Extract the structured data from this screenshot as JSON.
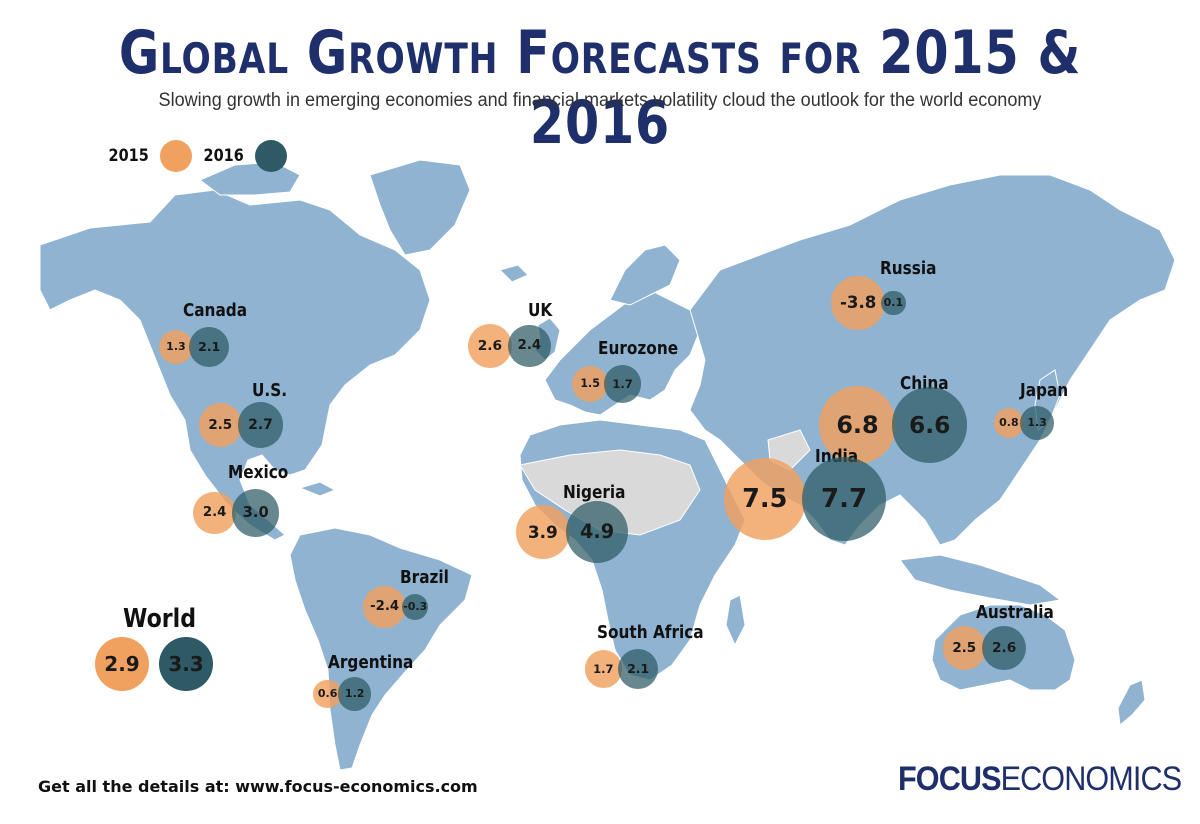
{
  "header": {
    "title": "Global Growth Forecasts for 2015 & 2016",
    "subtitle": "Slowing growth in emerging economies and financial markets volatility cloud the outlook for the world economy"
  },
  "legend": {
    "label_2015": "2015",
    "label_2016": "2016",
    "color_2015": "#f0a05f",
    "color_2016": "#2d5a64"
  },
  "colors": {
    "land": "#8fb3d1",
    "land_no_data": "#d9d9d9"
  },
  "countries": [
    {
      "id": "canada",
      "name": "Canada",
      "v2015": "1.3",
      "v2016": "2.1",
      "g2015": 1.3,
      "g2016": 2.1
    },
    {
      "id": "us",
      "name": "U.S.",
      "v2015": "2.5",
      "v2016": "2.7",
      "g2015": 2.5,
      "g2016": 2.7
    },
    {
      "id": "mexico",
      "name": "Mexico",
      "v2015": "2.4",
      "v2016": "3.0",
      "g2015": 2.4,
      "g2016": 3.0
    },
    {
      "id": "brazil",
      "name": "Brazil",
      "v2015": "-2.4",
      "v2016": "-0.3",
      "g2015": -2.4,
      "g2016": -0.3
    },
    {
      "id": "argentina",
      "name": "Argentina",
      "v2015": "0.6",
      "v2016": "1.2",
      "g2015": 0.6,
      "g2016": 1.2
    },
    {
      "id": "uk",
      "name": "UK",
      "v2015": "2.6",
      "v2016": "2.4",
      "g2015": 2.6,
      "g2016": 2.4
    },
    {
      "id": "eurozone",
      "name": "Eurozone",
      "v2015": "1.5",
      "v2016": "1.7",
      "g2015": 1.5,
      "g2016": 1.7
    },
    {
      "id": "nigeria",
      "name": "Nigeria",
      "v2015": "3.9",
      "v2016": "4.9",
      "g2015": 3.9,
      "g2016": 4.9
    },
    {
      "id": "south-africa",
      "name": "South Africa",
      "v2015": "1.7",
      "v2016": "2.1",
      "g2015": 1.7,
      "g2016": 2.1
    },
    {
      "id": "russia",
      "name": "Russia",
      "v2015": "-3.8",
      "v2016": "0.1",
      "g2015": -3.8,
      "g2016": 0.1
    },
    {
      "id": "china",
      "name": "China",
      "v2015": "6.8",
      "v2016": "6.6",
      "g2015": 6.8,
      "g2016": 6.6
    },
    {
      "id": "india",
      "name": "India",
      "v2015": "7.5",
      "v2016": "7.7",
      "g2015": 7.5,
      "g2016": 7.7
    },
    {
      "id": "japan",
      "name": "Japan",
      "v2015": "0.8",
      "v2016": "1.3",
      "g2015": 0.8,
      "g2016": 1.3
    },
    {
      "id": "australia",
      "name": "Australia",
      "v2015": "2.5",
      "v2016": "2.6",
      "g2015": 2.5,
      "g2016": 2.6
    }
  ],
  "world": {
    "name": "World",
    "v2015": "2.9",
    "v2016": "3.3",
    "g2015": 2.9,
    "g2016": 3.3
  },
  "footer": {
    "details": "Get all the details at: www.focus-economics.com",
    "brand_bold": "FOCUS",
    "brand_rest": "ECONOMICS"
  }
}
